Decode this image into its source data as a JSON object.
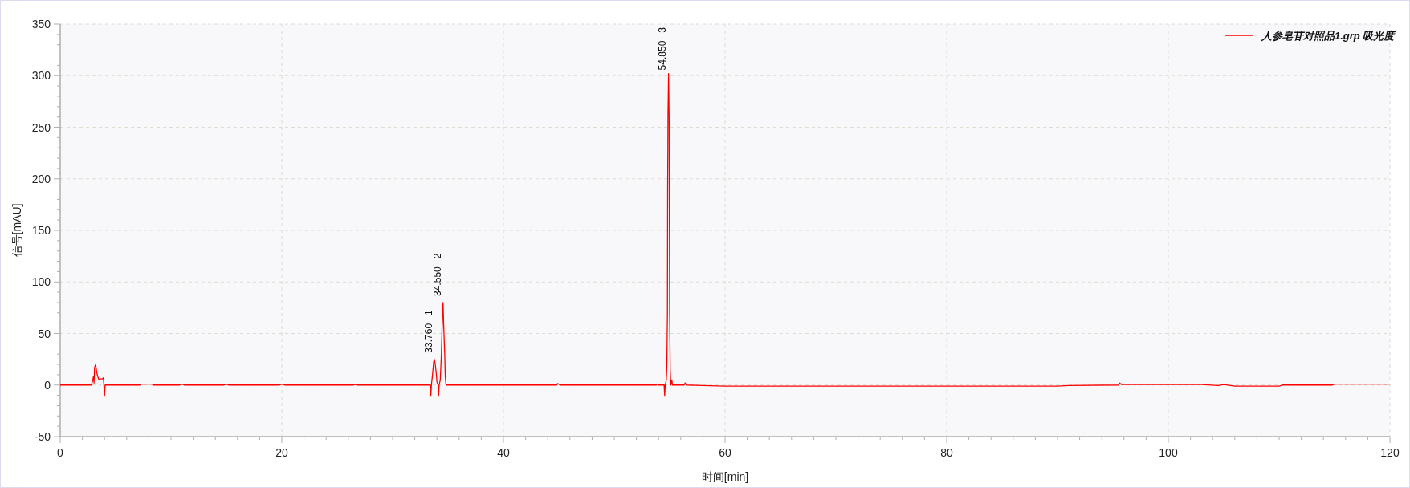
{
  "chart_data": {
    "type": "line",
    "xlabel": "时间[min]",
    "ylabel": "信号[mAU]",
    "xlim": [
      0,
      120
    ],
    "xticks": [
      0,
      20,
      40,
      60,
      80,
      100,
      120
    ],
    "ylim": [
      -50,
      350
    ],
    "yticks": [
      -50,
      0,
      50,
      100,
      150,
      200,
      250,
      300,
      350
    ],
    "grid": true,
    "legend": "top right",
    "marker": "none",
    "line_style": "solid",
    "series": [
      {
        "name": "人参皂苷对照品1.grp 吸光度",
        "color": "#ff0000",
        "x": [
          0,
          2.8,
          2.9,
          3.0,
          3.05,
          3.1,
          3.2,
          3.3,
          3.4,
          3.5,
          3.6,
          3.8,
          3.9,
          4.0,
          4.05,
          7.2,
          7.3,
          8.3,
          8.4,
          10.8,
          11,
          11.2,
          14.8,
          15,
          15.2,
          19.8,
          20,
          20.3,
          26.5,
          26.6,
          26.8,
          33.4,
          33.45,
          33.5,
          33.6,
          33.7,
          33.76,
          33.85,
          33.95,
          34.0,
          34.1,
          34.15,
          34.2,
          34.3,
          34.4,
          34.5,
          34.55,
          34.6,
          34.7,
          34.75,
          34.8,
          34.85,
          44.8,
          44.9,
          45.1,
          53.8,
          53.9,
          54.0,
          54.5,
          54.55,
          54.6,
          54.7,
          54.75,
          54.8,
          54.82,
          54.85,
          54.9,
          54.95,
          55.0,
          55.05,
          55.1,
          55.2,
          55.25,
          56.3,
          56.4,
          56.5,
          58,
          60,
          80,
          90,
          91,
          95.5,
          95.6,
          95.8,
          103,
          104.5,
          105,
          106,
          110,
          110.3,
          114.8,
          115,
          120
        ],
        "values": [
          0,
          0,
          3,
          8,
          2,
          17,
          20,
          12,
          8,
          5,
          6,
          6,
          7,
          -10,
          0,
          0,
          0.8,
          0.8,
          0,
          0,
          0.8,
          0,
          0,
          0.8,
          0,
          0,
          0.8,
          0,
          0,
          0.6,
          0,
          0,
          -10,
          0,
          10,
          22,
          25,
          20,
          10,
          3,
          0,
          -10,
          0,
          5,
          30,
          70,
          80,
          60,
          30,
          8,
          2,
          0,
          0,
          1.5,
          0,
          0,
          1,
          0,
          0,
          -10,
          0,
          5,
          20,
          70,
          185,
          260,
          302,
          260,
          70,
          15,
          0,
          5,
          0,
          0,
          2,
          0,
          -0.5,
          -1,
          -1,
          -1,
          -0.5,
          0,
          2,
          0.5,
          0.5,
          -0.5,
          0.5,
          -1,
          -1,
          0,
          0,
          0.8,
          0.8
        ]
      }
    ],
    "annotations": [
      {
        "text": "33.760   1",
        "x": 33.76,
        "y": 25
      },
      {
        "text": "34.550   2",
        "x": 34.55,
        "y": 80
      },
      {
        "text": "54.850   3",
        "x": 54.85,
        "y": 302
      }
    ]
  }
}
